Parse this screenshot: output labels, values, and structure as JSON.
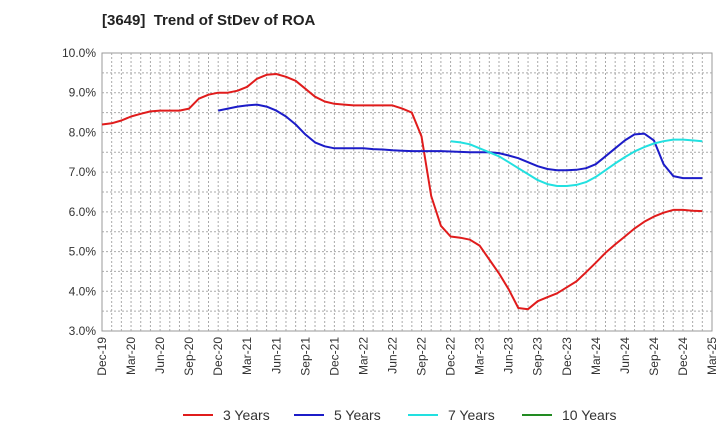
{
  "chart_data": {
    "type": "line",
    "title": "[3649]  Trend of StDev of ROA",
    "xlabel": "",
    "ylabel": "",
    "ylim": [
      3.0,
      10.0
    ],
    "y_ticks": [
      "3.0%",
      "4.0%",
      "5.0%",
      "6.0%",
      "7.0%",
      "8.0%",
      "9.0%",
      "10.0%"
    ],
    "x_ticks": [
      "Dec-19",
      "Mar-20",
      "Jun-20",
      "Sep-20",
      "Dec-20",
      "Mar-21",
      "Jun-21",
      "Sep-21",
      "Dec-21",
      "Mar-22",
      "Jun-22",
      "Sep-22",
      "Dec-22",
      "Mar-23",
      "Jun-23",
      "Sep-23",
      "Dec-23",
      "Mar-24",
      "Jun-24",
      "Sep-24",
      "Dec-24",
      "Mar-25"
    ],
    "x_unit": "month index from Dec-19",
    "grid": true,
    "legend_position": "bottom",
    "series": [
      {
        "name": "3 Years",
        "color": "#e01c1c",
        "points": [
          [
            0,
            8.2
          ],
          [
            1,
            8.23
          ],
          [
            2,
            8.3
          ],
          [
            3,
            8.4
          ],
          [
            4,
            8.47
          ],
          [
            5,
            8.53
          ],
          [
            6,
            8.55
          ],
          [
            7,
            8.55
          ],
          [
            8,
            8.55
          ],
          [
            9,
            8.6
          ],
          [
            10,
            8.85
          ],
          [
            11,
            8.95
          ],
          [
            12,
            9.0
          ],
          [
            13,
            9.0
          ],
          [
            14,
            9.05
          ],
          [
            15,
            9.15
          ],
          [
            16,
            9.35
          ],
          [
            17,
            9.45
          ],
          [
            18,
            9.47
          ],
          [
            19,
            9.4
          ],
          [
            20,
            9.3
          ],
          [
            21,
            9.1
          ],
          [
            22,
            8.9
          ],
          [
            23,
            8.78
          ],
          [
            24,
            8.72
          ],
          [
            25,
            8.7
          ],
          [
            26,
            8.68
          ],
          [
            27,
            8.68
          ],
          [
            28,
            8.68
          ],
          [
            29,
            8.68
          ],
          [
            30,
            8.68
          ],
          [
            31,
            8.6
          ],
          [
            32,
            8.5
          ],
          [
            33,
            7.9
          ],
          [
            34,
            6.4
          ],
          [
            35,
            5.65
          ],
          [
            36,
            5.38
          ],
          [
            37,
            5.35
          ],
          [
            38,
            5.3
          ],
          [
            39,
            5.15
          ],
          [
            40,
            4.8
          ],
          [
            41,
            4.45
          ],
          [
            42,
            4.05
          ],
          [
            43,
            3.58
          ],
          [
            44,
            3.55
          ],
          [
            45,
            3.75
          ],
          [
            46,
            3.85
          ],
          [
            47,
            3.95
          ],
          [
            48,
            4.1
          ],
          [
            49,
            4.25
          ],
          [
            50,
            4.48
          ],
          [
            51,
            4.72
          ],
          [
            52,
            4.97
          ],
          [
            53,
            5.18
          ],
          [
            54,
            5.38
          ],
          [
            55,
            5.58
          ],
          [
            56,
            5.75
          ],
          [
            57,
            5.88
          ],
          [
            58,
            5.98
          ],
          [
            59,
            6.05
          ],
          [
            60,
            6.05
          ],
          [
            61,
            6.03
          ],
          [
            62,
            6.02
          ]
        ]
      },
      {
        "name": "5 Years",
        "color": "#1c1cc8",
        "points": [
          [
            12,
            8.55
          ],
          [
            13,
            8.6
          ],
          [
            14,
            8.65
          ],
          [
            15,
            8.68
          ],
          [
            16,
            8.7
          ],
          [
            17,
            8.65
          ],
          [
            18,
            8.55
          ],
          [
            19,
            8.4
          ],
          [
            20,
            8.2
          ],
          [
            21,
            7.95
          ],
          [
            22,
            7.75
          ],
          [
            23,
            7.65
          ],
          [
            24,
            7.6
          ],
          [
            25,
            7.6
          ],
          [
            26,
            7.6
          ],
          [
            27,
            7.6
          ],
          [
            28,
            7.58
          ],
          [
            29,
            7.57
          ],
          [
            30,
            7.55
          ],
          [
            31,
            7.54
          ],
          [
            32,
            7.53
          ],
          [
            33,
            7.53
          ],
          [
            34,
            7.53
          ],
          [
            35,
            7.53
          ],
          [
            36,
            7.52
          ],
          [
            37,
            7.51
          ],
          [
            38,
            7.5
          ],
          [
            39,
            7.5
          ],
          [
            40,
            7.5
          ],
          [
            41,
            7.48
          ],
          [
            42,
            7.42
          ],
          [
            43,
            7.35
          ],
          [
            44,
            7.25
          ],
          [
            45,
            7.15
          ],
          [
            46,
            7.08
          ],
          [
            47,
            7.05
          ],
          [
            48,
            7.05
          ],
          [
            49,
            7.06
          ],
          [
            50,
            7.1
          ],
          [
            51,
            7.2
          ],
          [
            52,
            7.4
          ],
          [
            53,
            7.6
          ],
          [
            54,
            7.8
          ],
          [
            55,
            7.95
          ],
          [
            56,
            7.97
          ],
          [
            57,
            7.8
          ],
          [
            58,
            7.2
          ],
          [
            59,
            6.9
          ],
          [
            60,
            6.85
          ],
          [
            61,
            6.85
          ],
          [
            62,
            6.85
          ]
        ]
      },
      {
        "name": "7 Years",
        "color": "#22e0e0",
        "points": [
          [
            36,
            7.78
          ],
          [
            37,
            7.75
          ],
          [
            38,
            7.7
          ],
          [
            39,
            7.6
          ],
          [
            40,
            7.5
          ],
          [
            41,
            7.4
          ],
          [
            42,
            7.25
          ],
          [
            43,
            7.1
          ],
          [
            44,
            6.95
          ],
          [
            45,
            6.8
          ],
          [
            46,
            6.7
          ],
          [
            47,
            6.65
          ],
          [
            48,
            6.65
          ],
          [
            49,
            6.68
          ],
          [
            50,
            6.75
          ],
          [
            51,
            6.88
          ],
          [
            52,
            7.05
          ],
          [
            53,
            7.22
          ],
          [
            54,
            7.38
          ],
          [
            55,
            7.52
          ],
          [
            56,
            7.63
          ],
          [
            57,
            7.72
          ],
          [
            58,
            7.78
          ],
          [
            59,
            7.82
          ],
          [
            60,
            7.82
          ],
          [
            61,
            7.8
          ],
          [
            62,
            7.78
          ]
        ]
      },
      {
        "name": "10 Years",
        "color": "#228b22",
        "points": []
      }
    ]
  }
}
